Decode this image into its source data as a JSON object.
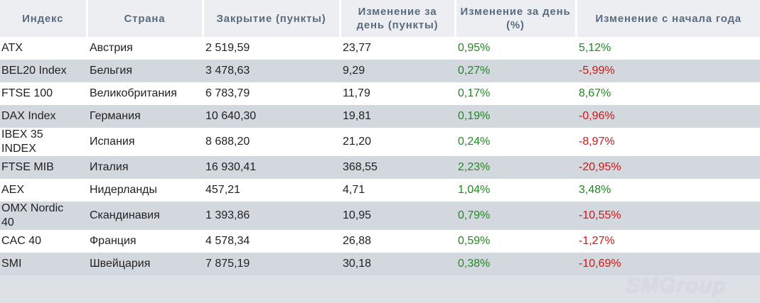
{
  "table": {
    "header": [
      "Индекс",
      "Страна",
      "Закрытие (пункты)",
      "Изменение за день (пункты)",
      "Изменение за день (%)",
      "Изменение с начала года"
    ],
    "rows": [
      [
        "ATX",
        "Австрия",
        "2 519,59",
        "23,77",
        "0,95%",
        "5,12%"
      ],
      [
        "BEL20 Index",
        "Бельгия",
        "3 478,63",
        "9,29",
        "0,27%",
        "-5,99%"
      ],
      [
        "FTSE 100",
        "Великобритания",
        "6 783,79",
        "11,79",
        "0,17%",
        "8,67%"
      ],
      [
        "DAX Index",
        "Германия",
        "10 640,30",
        "19,81",
        "0,19%",
        "-0,96%"
      ],
      [
        "IBEX 35 INDEX",
        "Испания",
        "8 688,20",
        "21,20",
        "0,24%",
        "-8,97%"
      ],
      [
        "FTSE MIB",
        "Италия",
        "16 930,41",
        "368,55",
        "2,23%",
        "-20,95%"
      ],
      [
        "AEX",
        "Нидерланды",
        "457,21",
        "4,71",
        "1,04%",
        "3,48%"
      ],
      [
        "OMX Nordic 40",
        "Скандинавия",
        "1 393,86",
        "10,95",
        "0,79%",
        "-10,55%"
      ],
      [
        "CAC 40",
        "Франция",
        "4 578,34",
        "26,88",
        "0,59%",
        "-1,27%"
      ],
      [
        "SMI",
        "Швейцария",
        "7 875,19",
        "30,18",
        "0,38%",
        "-10,69%"
      ]
    ],
    "colors": {
      "positive": "#1e8c1e",
      "negative": "#e01010"
    }
  },
  "watermark": "SMGroup"
}
